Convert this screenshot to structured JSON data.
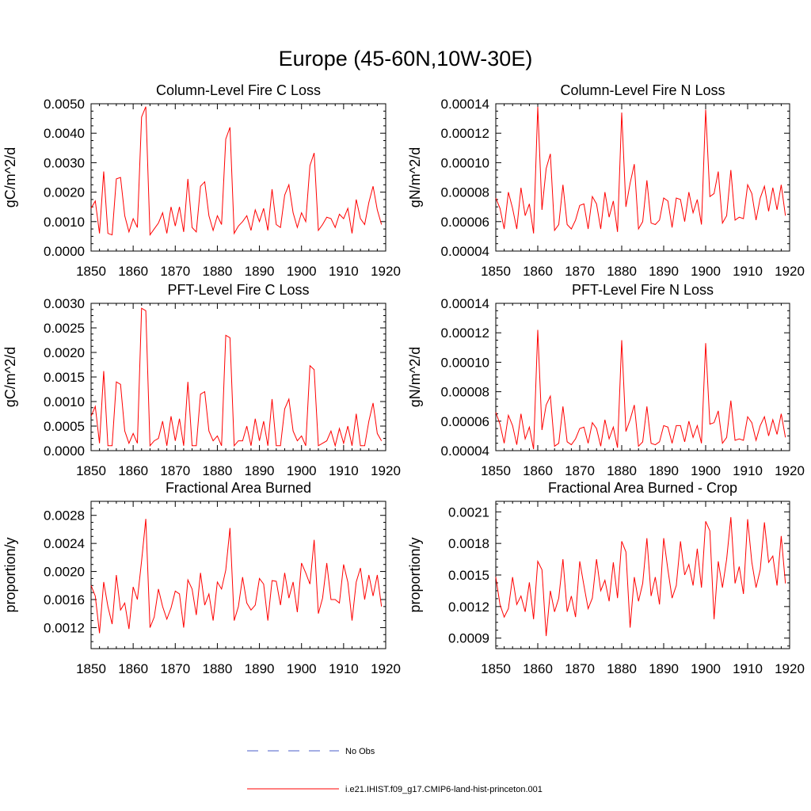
{
  "figure": {
    "title": "Europe (45-60N,10W-30E)",
    "line_color": "#ff0000",
    "obs_color": "#4a5cc8"
  },
  "legend": {
    "entries": [
      {
        "label": "No Obs",
        "style": "dashed",
        "color": "#4a5cc8"
      },
      {
        "label": "i.e21.IHIST.f09_g17.CMIP6-land-hist-princeton.001",
        "style": "solid",
        "color": "#ff0000"
      }
    ]
  },
  "chart_data": [
    {
      "type": "line",
      "title": "Column-Level Fire C Loss",
      "ylabel": "gC/m^2/d",
      "xlabel": "",
      "xlim": [
        1850,
        1920
      ],
      "ylim": [
        0,
        0.005
      ],
      "xticks": [
        "1850",
        "1860",
        "1870",
        "1880",
        "1890",
        "1900",
        "1910",
        "1920"
      ],
      "yticks": [
        "0.0000",
        "0.0010",
        "0.0020",
        "0.0030",
        "0.0040",
        "0.0050"
      ],
      "x_start": 1850,
      "values": [
        0.00145,
        0.0017,
        0.0006,
        0.0027,
        0.0006,
        0.00055,
        0.00245,
        0.0025,
        0.0012,
        0.00065,
        0.0011,
        0.0008,
        0.00455,
        0.0049,
        0.00055,
        0.00075,
        0.00095,
        0.0013,
        0.0006,
        0.0015,
        0.00085,
        0.0015,
        0.00065,
        0.00245,
        0.0008,
        0.00065,
        0.0022,
        0.00235,
        0.0012,
        0.0007,
        0.0012,
        0.0009,
        0.0038,
        0.0042,
        0.0006,
        0.00085,
        0.001,
        0.0012,
        0.0007,
        0.0014,
        0.001,
        0.00145,
        0.0007,
        0.0021,
        0.0009,
        0.0008,
        0.0019,
        0.00225,
        0.0013,
        0.0008,
        0.0013,
        0.001,
        0.0029,
        0.00333,
        0.0007,
        0.0009,
        0.00115,
        0.0011,
        0.0008,
        0.00125,
        0.0011,
        0.00145,
        0.0006,
        0.00175,
        0.0011,
        0.0009,
        0.00165,
        0.0022,
        0.0014,
        0.0009
      ]
    },
    {
      "type": "line",
      "title": "Column-Level Fire N Loss",
      "ylabel": "gN/m^2/d",
      "xlabel": "",
      "xlim": [
        1850,
        1920
      ],
      "ylim": [
        4e-05,
        0.00014
      ],
      "xticks": [
        "1850",
        "1860",
        "1870",
        "1880",
        "1890",
        "1900",
        "1910",
        "1920"
      ],
      "yticks": [
        "0.00004",
        "0.00006",
        "0.00008",
        "0.00010",
        "0.00012",
        "0.00014"
      ],
      "x_start": 1850,
      "values": [
        7.6e-05,
        6.9e-05,
        5.5e-05,
        8e-05,
        6.9e-05,
        5.5e-05,
        8.3e-05,
        6.4e-05,
        7.2e-05,
        5.2e-05,
        0.000138,
        6.8e-05,
        9.6e-05,
        0.000106,
        5.4e-05,
        5.8e-05,
        8.5e-05,
        5.8e-05,
        5.5e-05,
        6.1e-05,
        7.1e-05,
        7.2e-05,
        5.5e-05,
        7.7e-05,
        7.2e-05,
        5.5e-05,
        8e-05,
        6.3e-05,
        7.4e-05,
        5.3e-05,
        0.000134,
        7e-05,
        8.6e-05,
        9.9e-05,
        5.5e-05,
        6e-05,
        8.8e-05,
        5.9e-05,
        5.8e-05,
        6.1e-05,
        7.6e-05,
        7.4e-05,
        5.6e-05,
        7.6e-05,
        7.5e-05,
        6e-05,
        8e-05,
        6.6e-05,
        7.5e-05,
        5.8e-05,
        0.000136,
        7.7e-05,
        7.9e-05,
        9.4e-05,
        5.9e-05,
        6.4e-05,
        9.5e-05,
        6.1e-05,
        6.3e-05,
        6.2e-05,
        8.5e-05,
        7.9e-05,
        6.1e-05,
        7.6e-05,
        8.4e-05,
        6.7e-05,
        8.3e-05,
        6.8e-05,
        8.5e-05,
        6.4e-05
      ]
    },
    {
      "type": "line",
      "title": "PFT-Level Fire C Loss",
      "ylabel": "gC/m^2/d",
      "xlabel": "",
      "xlim": [
        1850,
        1920
      ],
      "ylim": [
        0,
        0.003
      ],
      "xticks": [
        "1850",
        "1860",
        "1870",
        "1880",
        "1890",
        "1900",
        "1910",
        "1920"
      ],
      "yticks": [
        "0.0000",
        "0.0005",
        "0.0010",
        "0.0015",
        "0.0020",
        "0.0025",
        "0.0030"
      ],
      "x_start": 1850,
      "values": [
        0.0007,
        0.0009,
        0.00015,
        0.00162,
        0.0001,
        0.0001,
        0.0014,
        0.00135,
        0.0004,
        0.00015,
        0.00035,
        0.00015,
        0.0029,
        0.00285,
        0.0001,
        0.0002,
        0.00025,
        0.0006,
        0.0001,
        0.0007,
        0.0002,
        0.00065,
        0.0001,
        0.0014,
        0.0001,
        0.0001,
        0.00115,
        0.0012,
        0.0004,
        0.0002,
        0.0003,
        0.0001,
        0.00235,
        0.0023,
        0.0001,
        0.0002,
        0.0002,
        0.0005,
        0.0001,
        0.00065,
        0.0002,
        0.0006,
        0.0001,
        0.00105,
        0.0001,
        0.0001,
        0.00085,
        0.00105,
        0.0004,
        0.0002,
        0.0003,
        0.0001,
        0.00173,
        0.00165,
        0.0001,
        0.00015,
        0.0002,
        0.0004,
        0.0001,
        0.00045,
        0.00015,
        0.0005,
        0.0001,
        0.00075,
        0.0001,
        0.0001,
        0.0006,
        0.00097,
        0.00035,
        0.0002
      ]
    },
    {
      "type": "line",
      "title": "PFT-Level Fire N Loss",
      "ylabel": "gN/m^2/d",
      "xlabel": "",
      "xlim": [
        1850,
        1920
      ],
      "ylim": [
        4e-05,
        0.00014
      ],
      "xticks": [
        "1850",
        "1860",
        "1870",
        "1880",
        "1890",
        "1900",
        "1910",
        "1920"
      ],
      "yticks": [
        "0.00004",
        "0.00006",
        "0.00008",
        "0.00010",
        "0.00012",
        "0.00014"
      ],
      "x_start": 1850,
      "values": [
        6.6e-05,
        5.8e-05,
        4.5e-05,
        6.4e-05,
        5.7e-05,
        4.4e-05,
        6.5e-05,
        4.8e-05,
        5.6e-05,
        4.1e-05,
        0.000122,
        5.4e-05,
        7.1e-05,
        7.7e-05,
        4.3e-05,
        4.5e-05,
        7e-05,
        4.6e-05,
        4.4e-05,
        4.8e-05,
        5.5e-05,
        5.6e-05,
        4.5e-05,
        5.9e-05,
        5.5e-05,
        4.3e-05,
        6.1e-05,
        4.8e-05,
        5.6e-05,
        4.2e-05,
        0.000115,
        5.3e-05,
        6.1e-05,
        7.1e-05,
        4.3e-05,
        4.6e-05,
        7e-05,
        4.5e-05,
        4.4e-05,
        4.6e-05,
        5.7e-05,
        5.6e-05,
        4.5e-05,
        5.7e-05,
        5.7e-05,
        4.6e-05,
        6e-05,
        4.9e-05,
        5.7e-05,
        4.5e-05,
        0.000113,
        5.8e-05,
        5.9e-05,
        6.7e-05,
        4.5e-05,
        4.9e-05,
        7.4e-05,
        4.7e-05,
        4.8e-05,
        4.7e-05,
        6.3e-05,
        5.9e-05,
        4.7e-05,
        5.7e-05,
        6.3e-05,
        5e-05,
        6.1e-05,
        5.1e-05,
        6.5e-05,
        4.9e-05
      ]
    },
    {
      "type": "line",
      "title": "Fractional Area Burned",
      "ylabel": "proportion/y",
      "xlabel": "",
      "xlim": [
        1850,
        1920
      ],
      "ylim": [
        0.0009,
        0.003
      ],
      "xticks": [
        "1850",
        "1860",
        "1870",
        "1880",
        "1890",
        "1900",
        "1910",
        "1920"
      ],
      "yticks": [
        "0.0012",
        "0.0016",
        "0.0020",
        "0.0024",
        "0.0028"
      ],
      "x_start": 1850,
      "values": [
        0.0018,
        0.00165,
        0.00112,
        0.00185,
        0.0015,
        0.00125,
        0.00195,
        0.00145,
        0.00155,
        0.00118,
        0.00178,
        0.0016,
        0.00215,
        0.00275,
        0.0012,
        0.00135,
        0.00175,
        0.0015,
        0.00132,
        0.00148,
        0.00172,
        0.00168,
        0.0012,
        0.00188,
        0.00175,
        0.00138,
        0.00198,
        0.00152,
        0.00168,
        0.0013,
        0.00185,
        0.00175,
        0.00202,
        0.00262,
        0.0013,
        0.0015,
        0.00192,
        0.00155,
        0.00145,
        0.00152,
        0.0019,
        0.00182,
        0.0013,
        0.00187,
        0.00186,
        0.00152,
        0.00198,
        0.00162,
        0.00185,
        0.00142,
        0.00212,
        0.00198,
        0.00182,
        0.00245,
        0.0014,
        0.00162,
        0.00212,
        0.0016,
        0.0016,
        0.00155,
        0.0021,
        0.00185,
        0.0013,
        0.00185,
        0.00205,
        0.0016,
        0.00195,
        0.00165,
        0.00195,
        0.0015
      ]
    },
    {
      "type": "line",
      "title": "Fractional Area Burned - Crop",
      "ylabel": "proportion/y",
      "xlabel": "",
      "xlim": [
        1850,
        1920
      ],
      "ylim": [
        0.0008,
        0.0022
      ],
      "xticks": [
        "1850",
        "1860",
        "1870",
        "1880",
        "1890",
        "1900",
        "1910",
        "1920"
      ],
      "yticks": [
        "0.0009",
        "0.0012",
        "0.0015",
        "0.0018",
        "0.0021"
      ],
      "x_start": 1850,
      "values": [
        0.00148,
        0.00122,
        0.0011,
        0.00118,
        0.00148,
        0.00122,
        0.0013,
        0.00115,
        0.00143,
        0.00108,
        0.00163,
        0.00155,
        0.00092,
        0.00135,
        0.00115,
        0.00128,
        0.00165,
        0.00115,
        0.0013,
        0.0011,
        0.00163,
        0.0014,
        0.00118,
        0.00128,
        0.00165,
        0.00135,
        0.00145,
        0.00125,
        0.00162,
        0.00128,
        0.00182,
        0.00172,
        0.001,
        0.00148,
        0.00125,
        0.00142,
        0.00185,
        0.0013,
        0.00148,
        0.00122,
        0.00185,
        0.00155,
        0.00128,
        0.0014,
        0.00182,
        0.0015,
        0.0016,
        0.0014,
        0.00175,
        0.00138,
        0.00201,
        0.00192,
        0.00108,
        0.00163,
        0.00138,
        0.00165,
        0.00205,
        0.00142,
        0.00158,
        0.00132,
        0.00203,
        0.00162,
        0.00138,
        0.00155,
        0.002,
        0.00162,
        0.00168,
        0.0014,
        0.00187,
        0.00142
      ]
    }
  ]
}
